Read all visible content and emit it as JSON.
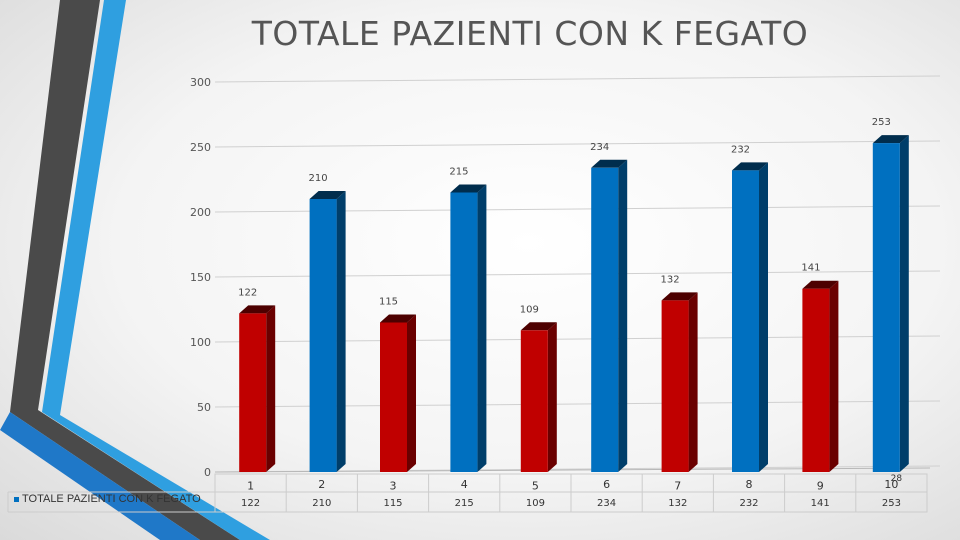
{
  "title": "TOTALE PAZIENTI CON K FEGATO",
  "colors": {
    "red": "#c00000",
    "blue": "#0070c0",
    "decor_dark": "#4a4a4a",
    "decor_light": "#2f9fe0"
  },
  "chart_data": {
    "type": "bar",
    "title": "TOTALE PAZIENTI CON K FEGATO",
    "xlabel": "",
    "ylabel": "",
    "ylim": [
      0,
      300
    ],
    "yticks": [
      0,
      50,
      100,
      150,
      200,
      250,
      300
    ],
    "grid": true,
    "legend_position": "bottom-left",
    "categories": [
      "1",
      "2",
      "3",
      "4",
      "5",
      "6",
      "7",
      "8",
      "9",
      "10"
    ],
    "category_note": "28",
    "series": [
      {
        "name": "TOTALE PAZIENTI CON K FEGATO",
        "values": [
          122,
          210,
          115,
          215,
          109,
          234,
          132,
          232,
          141,
          253
        ],
        "bar_colors": [
          "#c00000",
          "#0070c0",
          "#c00000",
          "#0070c0",
          "#c00000",
          "#0070c0",
          "#c00000",
          "#0070c0",
          "#c00000",
          "#0070c0"
        ]
      }
    ]
  }
}
